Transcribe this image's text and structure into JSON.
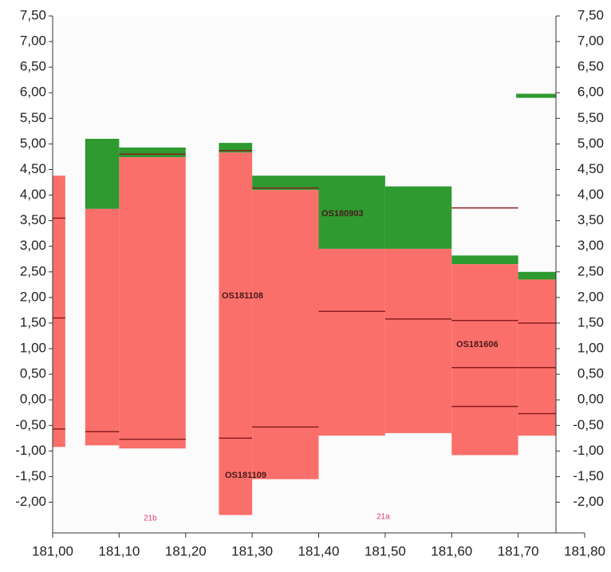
{
  "chart_data": {
    "type": "step-area",
    "xlim": [
      181.0,
      181.8
    ],
    "xticks": [
      {
        "value": 181.0,
        "label": "181,00"
      },
      {
        "value": 181.1,
        "label": "181,10"
      },
      {
        "value": 181.2,
        "label": "181,20"
      },
      {
        "value": 181.3,
        "label": "181,30"
      },
      {
        "value": 181.4,
        "label": "181,40"
      },
      {
        "value": 181.5,
        "label": "181,50"
      },
      {
        "value": 181.6,
        "label": "181,60"
      },
      {
        "value": 181.7,
        "label": "181,70"
      },
      {
        "value": 181.8,
        "label": "181,80"
      }
    ],
    "ylim": [
      -2.6,
      7.5
    ],
    "yticks": [
      {
        "value": -2.0,
        "label": "-2,00"
      },
      {
        "value": -1.5,
        "label": "-1,50"
      },
      {
        "value": -1.0,
        "label": "-1,00"
      },
      {
        "value": -0.5,
        "label": "-0,50"
      },
      {
        "value": 0.0,
        "label": "0,00"
      },
      {
        "value": 0.5,
        "label": "0,50"
      },
      {
        "value": 1.0,
        "label": "1,00"
      },
      {
        "value": 1.5,
        "label": "1,50"
      },
      {
        "value": 2.0,
        "label": "2,00"
      },
      {
        "value": 2.5,
        "label": "2,50"
      },
      {
        "value": 3.0,
        "label": "3,00"
      },
      {
        "value": 3.5,
        "label": "3,50"
      },
      {
        "value": 4.0,
        "label": "4,00"
      },
      {
        "value": 4.5,
        "label": "4,50"
      },
      {
        "value": 5.0,
        "label": "5,00"
      },
      {
        "value": 5.5,
        "label": "5,50"
      },
      {
        "value": 6.0,
        "label": "6,00"
      },
      {
        "value": 6.5,
        "label": "6,50"
      },
      {
        "value": 7.0,
        "label": "7,00"
      },
      {
        "value": 7.5,
        "label": "7,50"
      }
    ],
    "red_color": "#fb6f6a",
    "green_color": "#2e9a30",
    "line_color": "#8b1f1f",
    "green_blocks": [
      {
        "x": [
          181.049,
          181.1
        ],
        "y": [
          3.73,
          5.1
        ]
      },
      {
        "x": [
          181.1,
          181.2
        ],
        "y": [
          4.74,
          4.93
        ]
      },
      {
        "x": [
          181.25,
          181.3
        ],
        "y": [
          4.83,
          5.02
        ]
      },
      {
        "x": [
          181.3,
          181.4
        ],
        "y": [
          4.1,
          4.38
        ]
      },
      {
        "x": [
          181.4,
          181.5
        ],
        "y": [
          2.95,
          4.38
        ]
      },
      {
        "x": [
          181.5,
          181.6
        ],
        "y": [
          2.95,
          4.17
        ]
      },
      {
        "x": [
          181.6,
          181.7
        ],
        "y": [
          2.65,
          2.82
        ]
      },
      {
        "x": [
          181.7,
          181.757
        ],
        "y": [
          2.35,
          2.5
        ]
      },
      {
        "x": [
          181.697,
          181.757
        ],
        "y": [
          5.9,
          5.98
        ]
      }
    ],
    "red_blocks": [
      {
        "x": [
          181.0,
          181.019
        ],
        "y": [
          -0.92,
          4.38
        ]
      },
      {
        "x": [
          181.049,
          181.1
        ],
        "y": [
          -0.89,
          3.73
        ]
      },
      {
        "x": [
          181.1,
          181.2
        ],
        "y": [
          -0.95,
          4.74
        ]
      },
      {
        "x": [
          181.25,
          181.3
        ],
        "y": [
          -2.25,
          4.83
        ]
      },
      {
        "x": [
          181.3,
          181.4
        ],
        "y": [
          -1.55,
          4.1
        ]
      },
      {
        "x": [
          181.4,
          181.5
        ],
        "y": [
          -0.7,
          2.95
        ]
      },
      {
        "x": [
          181.5,
          181.6
        ],
        "y": [
          -0.65,
          2.95
        ]
      },
      {
        "x": [
          181.6,
          181.7
        ],
        "y": [
          -1.08,
          2.65
        ]
      },
      {
        "x": [
          181.7,
          181.757
        ],
        "y": [
          -0.7,
          2.35
        ]
      }
    ],
    "lines": [
      {
        "x": [
          181.0,
          181.019
        ],
        "y": 3.55
      },
      {
        "x": [
          181.0,
          181.019
        ],
        "y": 1.6
      },
      {
        "x": [
          181.0,
          181.019
        ],
        "y": -0.57
      },
      {
        "x": [
          181.049,
          181.1
        ],
        "y": -0.62
      },
      {
        "x": [
          181.1,
          181.2
        ],
        "y": -0.77
      },
      {
        "x": [
          181.1,
          181.2
        ],
        "y": 4.8
      },
      {
        "x": [
          181.25,
          181.3
        ],
        "y": 4.87
      },
      {
        "x": [
          181.25,
          181.3
        ],
        "y": -0.75
      },
      {
        "x": [
          181.3,
          181.4
        ],
        "y": -0.53
      },
      {
        "x": [
          181.3,
          181.4
        ],
        "y": 4.14
      },
      {
        "x": [
          181.4,
          181.5
        ],
        "y": 1.73
      },
      {
        "x": [
          181.5,
          181.6
        ],
        "y": 1.58
      },
      {
        "x": [
          181.6,
          181.7
        ],
        "y": 1.55
      },
      {
        "x": [
          181.7,
          181.757
        ],
        "y": 1.5
      },
      {
        "x": [
          181.6,
          181.757
        ],
        "y": 0.63
      },
      {
        "x": [
          181.6,
          181.7
        ],
        "y": -0.13
      },
      {
        "x": [
          181.7,
          181.757
        ],
        "y": -0.27
      },
      {
        "x": [
          181.6,
          181.7
        ],
        "y": 3.75
      }
    ],
    "annotations": [
      "OS180903",
      "OS181108",
      "OS181606",
      "OS181109",
      "21b",
      "21a"
    ]
  }
}
